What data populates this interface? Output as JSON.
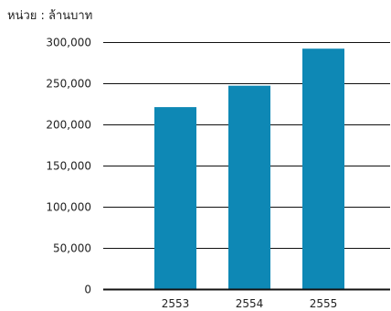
{
  "chart_data": {
    "type": "bar",
    "unit_label": "หน่วย : ล้านบาท",
    "categories": [
      "2553",
      "2554",
      "2555"
    ],
    "values": [
      221000,
      247000,
      292000
    ],
    "ylim": [
      0,
      300000
    ],
    "yticks": [
      0,
      50000,
      100000,
      150000,
      200000,
      250000,
      300000
    ],
    "ytick_labels": [
      "0",
      "50,000",
      "100,000",
      "150,000",
      "200,000",
      "250,000",
      "300,000"
    ],
    "grid": true,
    "legend": "none",
    "bar_color": "#0E88B5",
    "grid_color": "#111111"
  }
}
